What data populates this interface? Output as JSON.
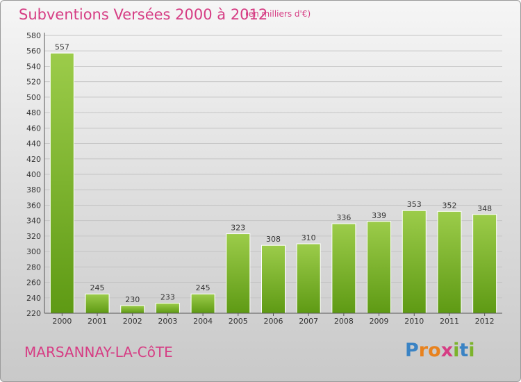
{
  "chart_data": {
    "type": "bar",
    "title": "Subventions Versées 2000 à 2012",
    "unit_label": "(en milliers d'€)",
    "categories": [
      "2000",
      "2001",
      "2002",
      "2003",
      "2004",
      "2005",
      "2006",
      "2007",
      "2008",
      "2009",
      "2010",
      "2011",
      "2012"
    ],
    "values": [
      557,
      245,
      230,
      233,
      245,
      323,
      308,
      310,
      336,
      339,
      353,
      352,
      348
    ],
    "ylim": [
      220,
      580
    ],
    "yticks": [
      220,
      240,
      260,
      280,
      300,
      320,
      340,
      360,
      380,
      400,
      420,
      440,
      460,
      480,
      500,
      520,
      540,
      560,
      580
    ],
    "grid": true,
    "xlabel": "",
    "ylabel": ""
  },
  "footer": {
    "town": "MARSANNAY-LA-CôTE",
    "logo_letters": [
      "P",
      "r",
      "o",
      "x",
      "i",
      "t",
      "i"
    ]
  },
  "colors": {
    "title": "#d63d84",
    "bar_top": "#9ccc4a",
    "bar_bottom": "#5e9a14",
    "logo": [
      "#3a83c4",
      "#e8821e",
      "#e8821e",
      "#d63d84",
      "#7cb32c",
      "#3a83c4",
      "#7cb32c"
    ]
  }
}
